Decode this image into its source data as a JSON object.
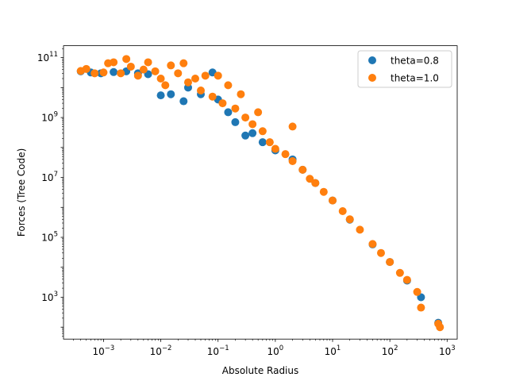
{
  "chart_data": {
    "type": "scatter",
    "title": "",
    "xlabel": "Absolute Radius",
    "ylabel": "Forces (Tree Code)",
    "xscale": "log",
    "yscale": "log",
    "xlim": [
      0.0002,
      1500
    ],
    "ylim": [
      40,
      250000000000
    ],
    "xticks": [
      {
        "value": 0.001,
        "base": "10",
        "exp": "−3"
      },
      {
        "value": 0.01,
        "base": "10",
        "exp": "−2"
      },
      {
        "value": 0.1,
        "base": "10",
        "exp": "−1"
      },
      {
        "value": 1,
        "base": "10",
        "exp": "0"
      },
      {
        "value": 10,
        "base": "10",
        "exp": "1"
      },
      {
        "value": 100,
        "base": "10",
        "exp": "2"
      },
      {
        "value": 1000,
        "base": "10",
        "exp": "3"
      }
    ],
    "yticks": [
      {
        "value": 1000,
        "base": "10",
        "exp": "3"
      },
      {
        "value": 100000,
        "base": "10",
        "exp": "5"
      },
      {
        "value": 10000000,
        "base": "10",
        "exp": "7"
      },
      {
        "value": 1000000000,
        "base": "10",
        "exp": "9"
      },
      {
        "value": 100000000000,
        "base": "10",
        "exp": "11"
      }
    ],
    "grid": false,
    "legend_position": "top-right",
    "series": [
      {
        "name": "theta=0.8",
        "color": "#1f77b4",
        "points": [
          [
            0.0004,
            35000000000.0
          ],
          [
            0.0006,
            32000000000.0
          ],
          [
            0.0009,
            30000000000.0
          ],
          [
            0.0015,
            33000000000.0
          ],
          [
            0.0025,
            35000000000.0
          ],
          [
            0.004,
            30000000000.0
          ],
          [
            0.006,
            28000000000.0
          ],
          [
            0.01,
            5500000000.0
          ],
          [
            0.015,
            6000000000.0
          ],
          [
            0.025,
            3500000000.0
          ],
          [
            0.03,
            10000000000.0
          ],
          [
            0.05,
            6000000000.0
          ],
          [
            0.08,
            32000000000.0
          ],
          [
            0.1,
            4000000000.0
          ],
          [
            0.15,
            1500000000.0
          ],
          [
            0.2,
            700000000.0
          ],
          [
            0.3,
            250000000.0
          ],
          [
            0.4,
            300000000.0
          ],
          [
            0.6,
            150000000.0
          ],
          [
            1.0,
            80000000.0
          ],
          [
            2.0,
            40000000.0
          ],
          [
            3.0,
            18000000.0
          ],
          [
            5.0,
            6500000.0
          ],
          [
            10,
            1700000.0
          ],
          [
            20,
            390000.0
          ],
          [
            50,
            58000.0
          ],
          [
            100,
            15000.0
          ],
          [
            200,
            3600
          ],
          [
            350,
            1000
          ],
          [
            700,
            140
          ]
        ]
      },
      {
        "name": "theta=1.0",
        "color": "#ff7f0e",
        "points": [
          [
            0.0004,
            36000000000.0
          ],
          [
            0.0005,
            42000000000.0
          ],
          [
            0.0007,
            30000000000.0
          ],
          [
            0.001,
            32000000000.0
          ],
          [
            0.0012,
            65000000000.0
          ],
          [
            0.0015,
            70000000000.0
          ],
          [
            0.002,
            30000000000.0
          ],
          [
            0.0025,
            90000000000.0
          ],
          [
            0.003,
            50000000000.0
          ],
          [
            0.004,
            25000000000.0
          ],
          [
            0.005,
            40000000000.0
          ],
          [
            0.006,
            70000000000.0
          ],
          [
            0.008,
            35000000000.0
          ],
          [
            0.01,
            20000000000.0
          ],
          [
            0.012,
            12000000000.0
          ],
          [
            0.015,
            55000000000.0
          ],
          [
            0.02,
            30000000000.0
          ],
          [
            0.025,
            65000000000.0
          ],
          [
            0.03,
            15000000000.0
          ],
          [
            0.04,
            20000000000.0
          ],
          [
            0.05,
            8000000000.0
          ],
          [
            0.06,
            25000000000.0
          ],
          [
            0.08,
            5000000000.0
          ],
          [
            0.1,
            25000000000.0
          ],
          [
            0.12,
            3000000000.0
          ],
          [
            0.15,
            12000000000.0
          ],
          [
            0.2,
            2000000000.0
          ],
          [
            0.25,
            6000000000.0
          ],
          [
            0.3,
            1000000000.0
          ],
          [
            0.4,
            600000000.0
          ],
          [
            0.5,
            1500000000.0
          ],
          [
            0.6,
            350000000.0
          ],
          [
            0.8,
            150000000.0
          ],
          [
            1.0,
            90000000.0
          ],
          [
            1.5,
            60000000.0
          ],
          [
            2.0,
            500000000.0
          ],
          [
            2.0,
            35000000.0
          ],
          [
            3.0,
            18000000.0
          ],
          [
            4.0,
            9000000.0
          ],
          [
            5.0,
            6500000.0
          ],
          [
            7.0,
            3300000.0
          ],
          [
            10,
            1700000.0
          ],
          [
            15,
            750000.0
          ],
          [
            20,
            400000.0
          ],
          [
            30,
            180000.0
          ],
          [
            50,
            60000.0
          ],
          [
            70,
            30000.0
          ],
          [
            100,
            15000.0
          ],
          [
            150,
            6500
          ],
          [
            200,
            3800
          ],
          [
            300,
            1500
          ],
          [
            350,
            450
          ],
          [
            700,
            130
          ],
          [
            750,
            100
          ]
        ]
      }
    ]
  }
}
